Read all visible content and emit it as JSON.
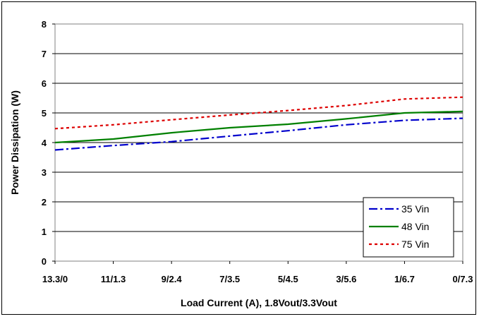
{
  "chart_data": {
    "type": "line",
    "title": "",
    "xlabel": "Load Current (A), 1.8Vout/3.3Vout",
    "ylabel": "Power Dissipation (W)",
    "ylim": [
      0,
      8
    ],
    "yticks": [
      "0",
      "1",
      "2",
      "3",
      "4",
      "5",
      "6",
      "7",
      "8"
    ],
    "categories": [
      "13.3/0",
      "11/1.3",
      "9/2.4",
      "7/3.5",
      "5/4.5",
      "3/5.6",
      "1/6.7",
      "0/7.3"
    ],
    "grid": "horizontal",
    "legend_position": "bottom-right",
    "series": [
      {
        "name": "35 Vin",
        "color": "#0000cc",
        "dash": "dash-dot",
        "values": [
          3.75,
          3.9,
          4.03,
          4.22,
          4.4,
          4.6,
          4.75,
          4.82
        ]
      },
      {
        "name": "48 Vin",
        "color": "#008000",
        "dash": "solid",
        "values": [
          4.0,
          4.12,
          4.33,
          4.5,
          4.62,
          4.8,
          5.0,
          5.05
        ]
      },
      {
        "name": "75 Vin",
        "color": "#dd0000",
        "dash": "dotted",
        "values": [
          4.47,
          4.6,
          4.77,
          4.93,
          5.08,
          5.25,
          5.47,
          5.53
        ]
      }
    ]
  }
}
